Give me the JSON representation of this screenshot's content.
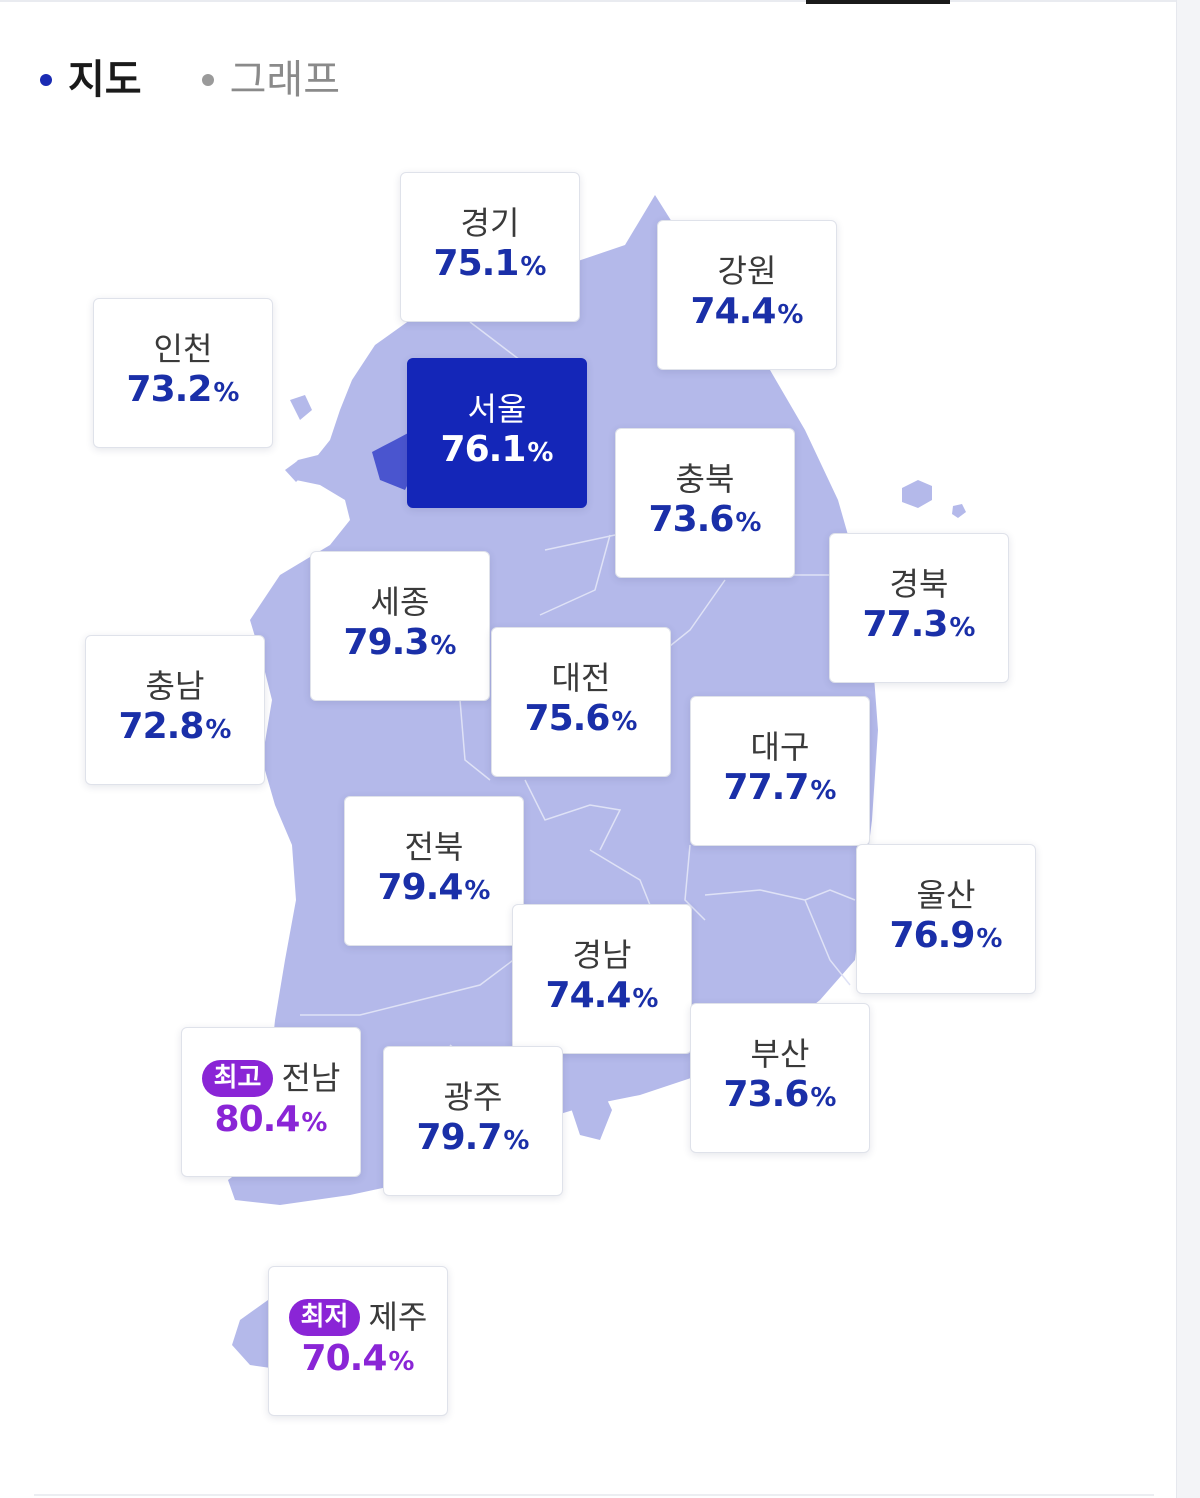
{
  "tabs": [
    {
      "label": "지도",
      "active": true
    },
    {
      "label": "그래프",
      "active": false
    }
  ],
  "percent_symbol": "%",
  "colors": {
    "map_fill": "#b4b9ea",
    "highlight": "#1426b8",
    "value_blue": "#1a2fa8",
    "value_purple": "#8a25d6"
  },
  "regions": {
    "gyeonggi": {
      "name": "경기",
      "value": "75.1"
    },
    "gangwon": {
      "name": "강원",
      "value": "74.4"
    },
    "incheon": {
      "name": "인천",
      "value": "73.2"
    },
    "seoul": {
      "name": "서울",
      "value": "76.1"
    },
    "chungbuk": {
      "name": "충북",
      "value": "73.6"
    },
    "gyeongbuk": {
      "name": "경북",
      "value": "77.3"
    },
    "sejong": {
      "name": "세종",
      "value": "79.3"
    },
    "chungnam": {
      "name": "충남",
      "value": "72.8"
    },
    "daejeon": {
      "name": "대전",
      "value": "75.6"
    },
    "daegu": {
      "name": "대구",
      "value": "77.7"
    },
    "jeonbuk": {
      "name": "전북",
      "value": "79.4"
    },
    "ulsan": {
      "name": "울산",
      "value": "76.9"
    },
    "gyeongnam": {
      "name": "경남",
      "value": "74.4"
    },
    "jeonnam": {
      "name": "전남",
      "value": "80.4",
      "badge": "최고"
    },
    "gwangju": {
      "name": "광주",
      "value": "79.7"
    },
    "busan": {
      "name": "부산",
      "value": "73.6"
    },
    "jeju": {
      "name": "제주",
      "value": "70.4",
      "badge": "최저"
    }
  }
}
